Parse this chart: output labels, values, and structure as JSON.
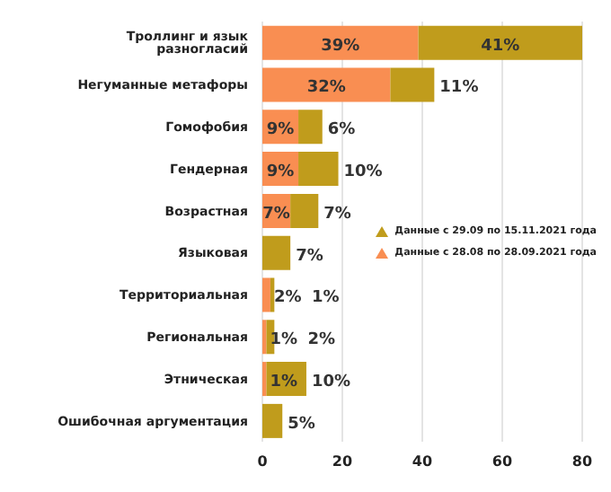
{
  "chart_data": {
    "type": "bar",
    "orientation": "horizontal",
    "stacked": true,
    "categories": [
      "Троллинг и язык разногласий",
      "Негуманные метафоры",
      "Гомофобия",
      "Гендерная",
      "Возрастная",
      "Языковая",
      "Территориальная",
      "Региональная",
      "Этническая",
      "Ошибочная аргументация"
    ],
    "series": [
      {
        "name": "Данные с 28.08 по 28.09.2021 года",
        "color": "#f98e52",
        "values": [
          39,
          32,
          9,
          9,
          7,
          null,
          2,
          1,
          1,
          null
        ],
        "value_labels": [
          "39%",
          "32%",
          "9%",
          "9%",
          "7%",
          null,
          "2%",
          "1%",
          "1%",
          null
        ]
      },
      {
        "name": "Данные с 29.09 по 15.11.2021 года",
        "color": "#c09c1c",
        "values": [
          41,
          11,
          6,
          10,
          7,
          7,
          1,
          2,
          10,
          5
        ],
        "value_labels": [
          "41%",
          "11%",
          "6%",
          "10%",
          "7%",
          "7%",
          "1%",
          "2%",
          "10%",
          "5%"
        ]
      }
    ],
    "xlim": [
      0,
      80
    ],
    "xticks": [
      0,
      20,
      40,
      60,
      80
    ],
    "grid": "x",
    "legend": "right"
  }
}
